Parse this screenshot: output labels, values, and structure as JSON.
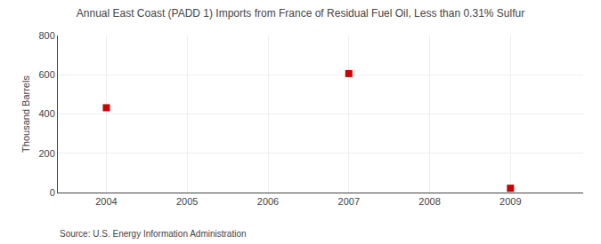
{
  "chart_data": {
    "type": "scatter",
    "title": "Annual East Coast (PADD 1) Imports from France of Residual Fuel Oil, Less than 0.31% Sulfur",
    "ylabel": "Thousand Barrels",
    "annotations": [
      "Source: U.S. Energy Information Administration"
    ],
    "x": [
      2004,
      2007,
      2009
    ],
    "values": [
      432,
      606,
      22
    ],
    "color": "#cc0000",
    "marker": "square",
    "xlim": [
      2003.4,
      2009.9
    ],
    "xticks": [
      2004,
      2005,
      2006,
      2007,
      2008,
      2009
    ],
    "ylim": [
      0,
      800
    ],
    "yticks": [
      0,
      200,
      400,
      600,
      800
    ],
    "grid": true
  }
}
